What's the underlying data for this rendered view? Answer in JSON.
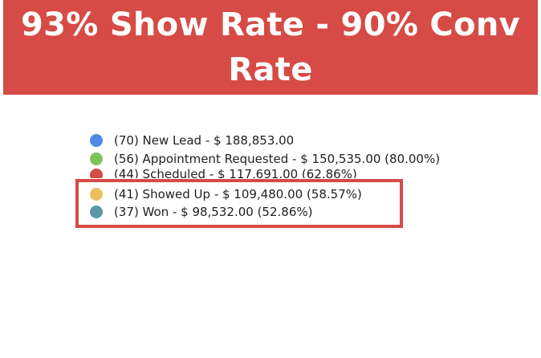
{
  "banner": {
    "title": "93% Show Rate - 90% Conv Rate",
    "background_color": "#d64b45"
  },
  "legend": {
    "items": [
      {
        "label": "(70) New Lead - $ 188,853.00",
        "color": "#4f8ae6"
      },
      {
        "label": "(56) Appointment Requested - $ 150,535.00 (80.00%)",
        "color": "#7cc35a"
      },
      {
        "label": "(44) Scheduled - $ 117,691.00 (62.86%)",
        "color": "#d44c47"
      },
      {
        "label": "(41) Showed Up - $ 109,480.00 (58.57%)",
        "color": "#eac05c"
      },
      {
        "label": "(37) Won - $ 98,532.00 (52.86%)",
        "color": "#5b98a8"
      }
    ]
  },
  "highlight": {
    "border_color": "#d64b45"
  }
}
